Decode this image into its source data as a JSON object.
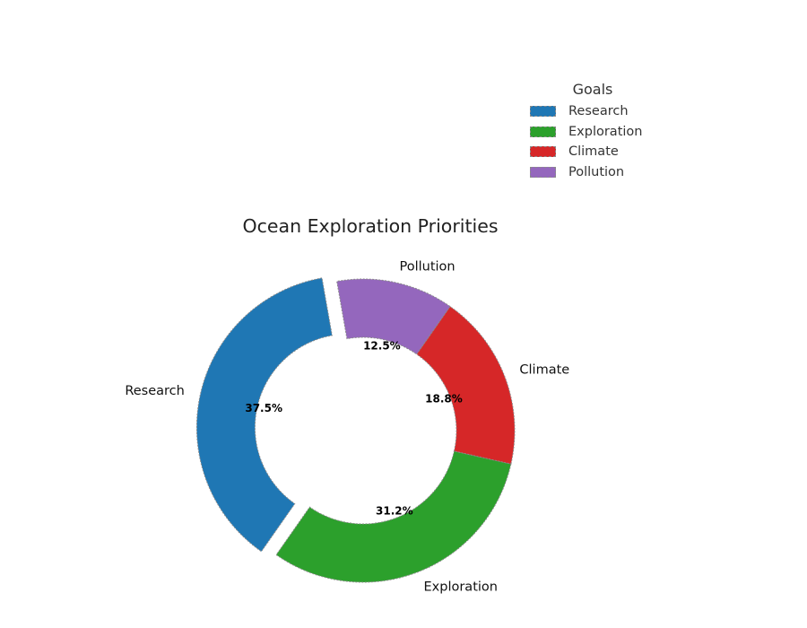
{
  "chart_data": {
    "type": "pie",
    "donut": true,
    "title": "Ocean Exploration Priorities",
    "categories": [
      "Research",
      "Exploration",
      "Climate",
      "Pollution"
    ],
    "values": [
      37.5,
      31.2,
      18.8,
      12.5
    ],
    "value_labels": [
      "37.5%",
      "31.2%",
      "18.8%",
      "12.5%"
    ],
    "colors": [
      "#1f77b4",
      "#2ca02c",
      "#d62728",
      "#9467bd"
    ],
    "exploded": [
      "Research"
    ],
    "start_angle_deg": 100,
    "direction": "counterclockwise",
    "legend": {
      "title": "Goals",
      "placement": "top-right",
      "items": [
        "Research",
        "Exploration",
        "Climate",
        "Pollution"
      ]
    }
  }
}
